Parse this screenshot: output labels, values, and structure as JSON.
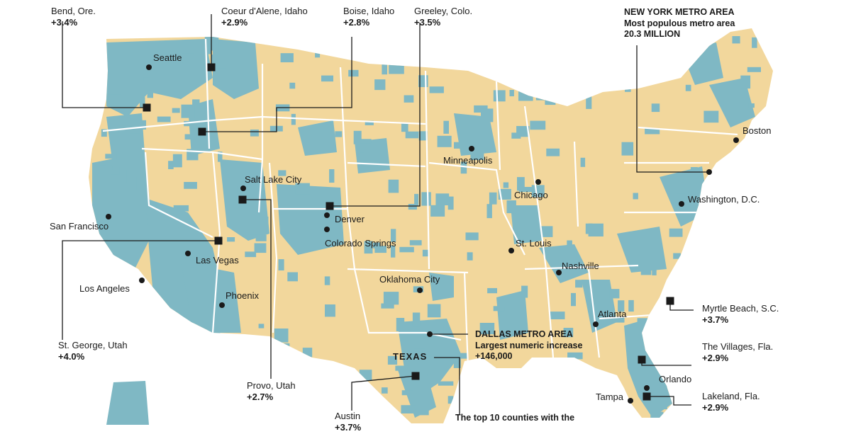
{
  "colors": {
    "growth": "#7fb8c4",
    "decline": "#f2d79c",
    "border": "#ffffff",
    "ink": "#1a1a1a"
  },
  "metros": {
    "bend": {
      "name": "Bend, Ore.",
      "value": "+3.4%"
    },
    "coeur": {
      "name": "Coeur d'Alene, Idaho",
      "value": "+2.9%"
    },
    "boise": {
      "name": "Boise, Idaho",
      "value": "+2.8%"
    },
    "greeley": {
      "name": "Greeley, Colo.",
      "value": "+3.5%"
    },
    "stgeorge": {
      "name": "St. George, Utah",
      "value": "+4.0%"
    },
    "provo": {
      "name": "Provo, Utah",
      "value": "+2.7%"
    },
    "austin": {
      "name": "Austin",
      "value": "+3.7%"
    },
    "myrtle": {
      "name": "Myrtle Beach, S.C.",
      "value": "+3.7%"
    },
    "villages": {
      "name": "The Villages, Fla.",
      "value": "+2.9%"
    },
    "lakeland": {
      "name": "Lakeland, Fla.",
      "value": "+2.9%"
    }
  },
  "callouts": {
    "ny": {
      "title": "NEW YORK METRO AREA",
      "line1": "Most populous metro area",
      "line2": "20.3 MILLION"
    },
    "dallas": {
      "title": "DALLAS METRO AREA",
      "line1": "Largest numeric increase",
      "line2": "+146,000"
    },
    "top10": {
      "text": "The top 10 counties with the"
    }
  },
  "cities": {
    "seattle": "Seattle",
    "sanfrancisco": "San Francisco",
    "losangeles": "Los Angeles",
    "lasvegas": "Las Vegas",
    "phoenix": "Phoenix",
    "saltlake": "Salt Lake City",
    "denver": "Denver",
    "coloradosprings": "Colorado Springs",
    "oklahoma": "Oklahoma City",
    "minneapolis": "Minneapolis",
    "chicago": "Chicago",
    "stlouis": "St. Louis",
    "nashville": "Nashville",
    "atlanta": "Atlanta",
    "washington": "Washington, D.C.",
    "boston": "Boston",
    "orlando": "Orlando",
    "tampa": "Tampa"
  },
  "states": {
    "texas": "TEXAS"
  }
}
